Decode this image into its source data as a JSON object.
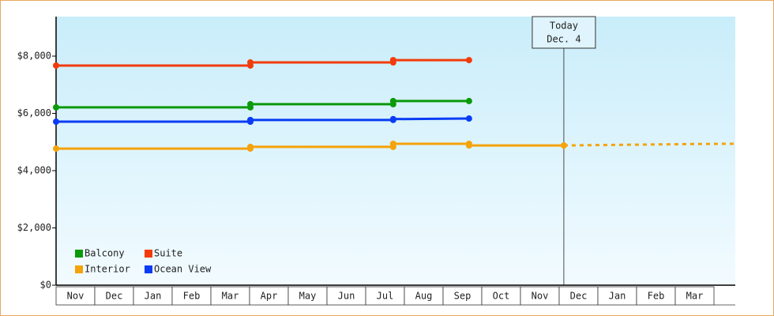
{
  "chart_data": {
    "type": "line",
    "categories": [
      "Nov",
      "Dec",
      "Jan",
      "Feb",
      "Mar",
      "Apr",
      "May",
      "Jun",
      "Jul",
      "Aug",
      "Sep",
      "Oct",
      "Nov",
      "Dec",
      "Jan",
      "Feb",
      "Mar"
    ],
    "xlim": [
      0,
      17.55
    ],
    "ylim": [
      0,
      9380
    ],
    "yticks": [
      {
        "value": 0,
        "label": "$0"
      },
      {
        "value": 2000,
        "label": "$2,000"
      },
      {
        "value": 4000,
        "label": "$4,000"
      },
      {
        "value": 6000,
        "label": "$6,000"
      },
      {
        "value": 8000,
        "label": "$8,000"
      }
    ],
    "legend": "lower left",
    "series": [
      {
        "name": "Balcony",
        "color": "#0a9a0a",
        "x": [
          0,
          5.02,
          5.02,
          8.71,
          8.71,
          10.67
        ],
        "values": [
          6210,
          6210,
          6320,
          6320,
          6430,
          6430
        ]
      },
      {
        "name": "Suite",
        "color": "#f23c0c",
        "x": [
          0,
          5.02,
          5.02,
          8.71,
          8.71,
          10.67
        ],
        "values": [
          7670,
          7670,
          7780,
          7780,
          7860,
          7860
        ]
      },
      {
        "name": "Interior",
        "color": "#f5a30a",
        "x": [
          0,
          5.02,
          5.02,
          8.71,
          8.71,
          10.67,
          10.67,
          13.12
        ],
        "values": [
          4770,
          4770,
          4830,
          4830,
          4940,
          4940,
          4880,
          4880
        ],
        "forecast": {
          "x": [
            13.12,
            16.5,
            17.55
          ],
          "values": [
            4880,
            4930,
            4940
          ]
        }
      },
      {
        "name": "Ocean View",
        "color": "#0a3cf5",
        "x": [
          0,
          5.02,
          5.02,
          8.71,
          8.71,
          10.67
        ],
        "values": [
          5710,
          5710,
          5770,
          5770,
          5800,
          5820
        ]
      }
    ],
    "annotation": {
      "x": 13.12,
      "lines": [
        "Today",
        "Dec. 4"
      ]
    }
  }
}
